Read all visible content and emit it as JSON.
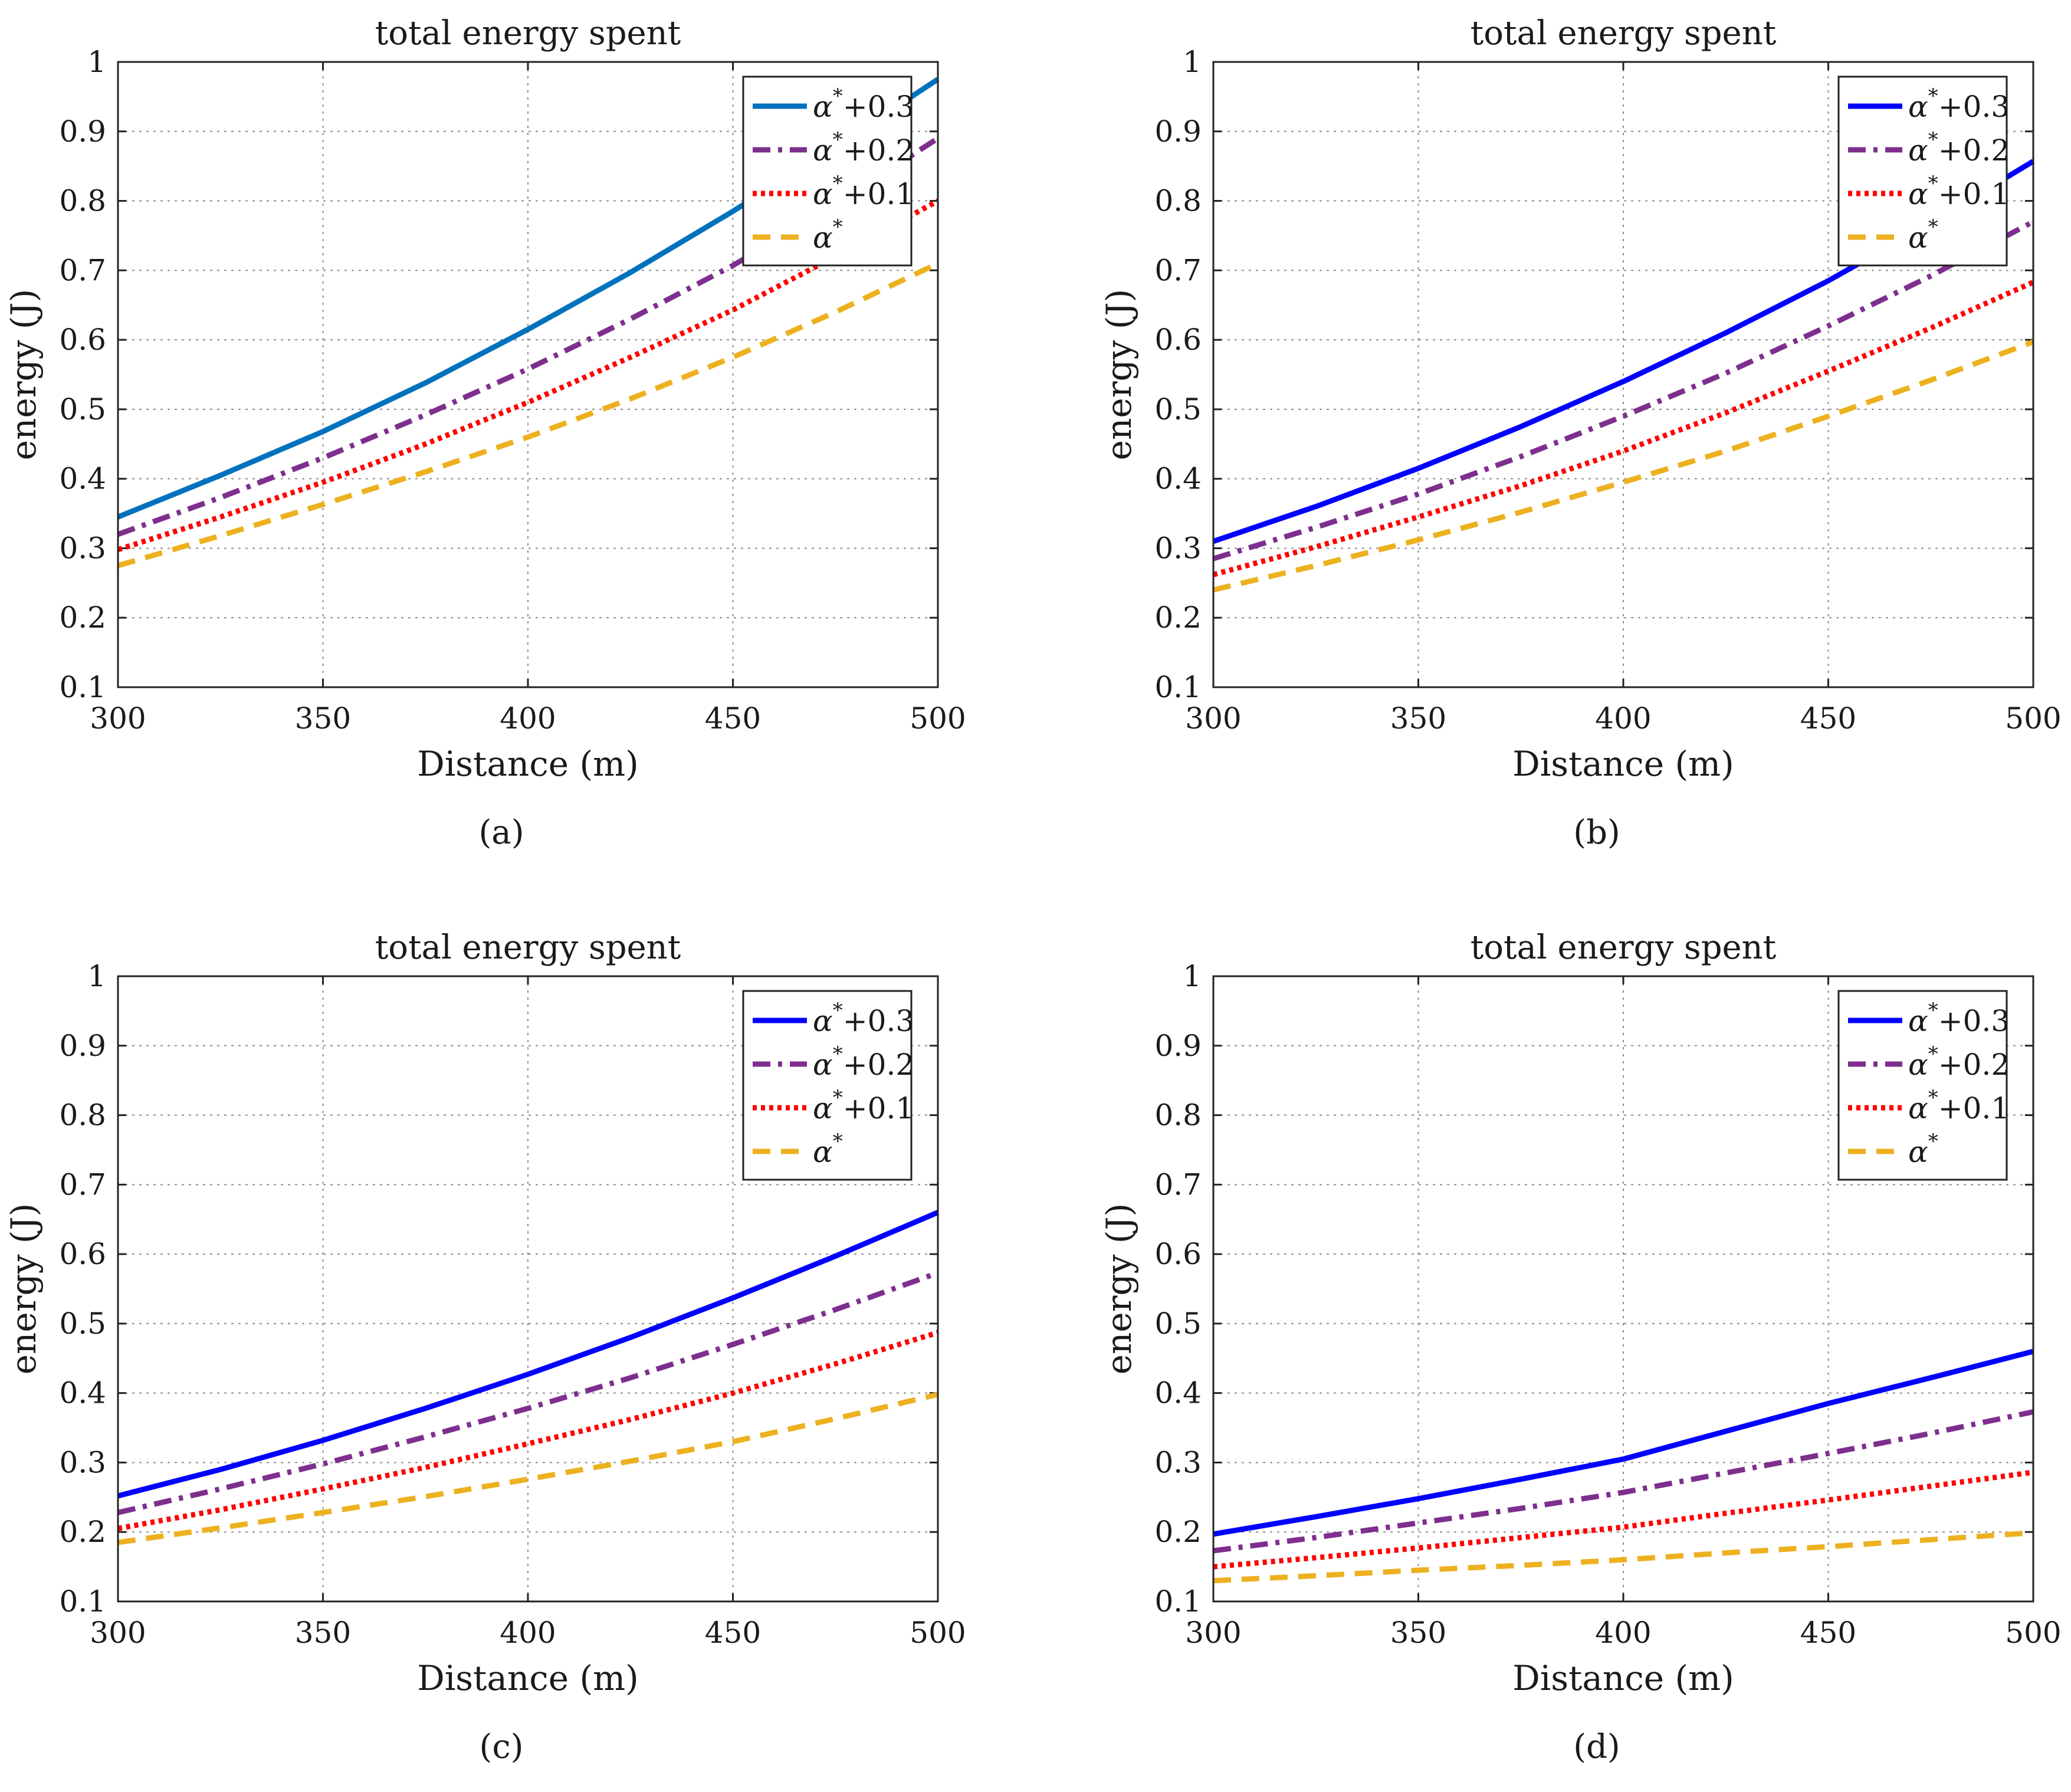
{
  "chart_data": [
    {
      "panel_label": "(a)",
      "type": "line",
      "title": "total energy spent",
      "xlabel": "Distance (m)",
      "ylabel": "energy (J)",
      "xlim": [
        300,
        500
      ],
      "ylim": [
        0.1,
        1
      ],
      "xticks": [
        "300",
        "350",
        "400",
        "450",
        "500"
      ],
      "yticks": [
        "0.1",
        "0.2",
        "0.3",
        "0.4",
        "0.5",
        "0.6",
        "0.7",
        "0.8",
        "0.9",
        "1"
      ],
      "grid": true,
      "legend_position": "top-right",
      "x": [
        300,
        325,
        350,
        375,
        400,
        425,
        450,
        475,
        500
      ],
      "series": [
        {
          "name": "α*+0.3",
          "greek": "α",
          "sup": "*",
          "suffix": "+0.3",
          "color": "#0072BD",
          "dash": "solid",
          "values": [
            0.345,
            0.405,
            0.468,
            0.538,
            0.615,
            0.697,
            0.785,
            0.878,
            0.975
          ]
        },
        {
          "name": "α*+0.2",
          "greek": "α",
          "sup": "*",
          "suffix": "+0.2",
          "color": "#7E2F8E",
          "dash": "dashdot",
          "values": [
            0.32,
            0.373,
            0.43,
            0.492,
            0.558,
            0.63,
            0.707,
            0.795,
            0.89
          ]
        },
        {
          "name": "α*+0.1",
          "greek": "α",
          "sup": "*",
          "suffix": "+0.1",
          "color": "#FF0000",
          "dash": "dotted",
          "values": [
            0.298,
            0.345,
            0.395,
            0.45,
            0.51,
            0.575,
            0.643,
            0.72,
            0.8
          ]
        },
        {
          "name": "α*",
          "greek": "α",
          "sup": "*",
          "suffix": "",
          "color": "#EDB120",
          "dash": "dashed",
          "values": [
            0.275,
            0.318,
            0.363,
            0.41,
            0.46,
            0.515,
            0.575,
            0.64,
            0.71
          ]
        }
      ]
    },
    {
      "panel_label": "(b)",
      "type": "line",
      "title": "total energy spent",
      "xlabel": "Distance (m)",
      "ylabel": "energy (J)",
      "xlim": [
        300,
        500
      ],
      "ylim": [
        0.1,
        1
      ],
      "xticks": [
        "300",
        "350",
        "400",
        "450",
        "500"
      ],
      "yticks": [
        "0.1",
        "0.2",
        "0.3",
        "0.4",
        "0.5",
        "0.6",
        "0.7",
        "0.8",
        "0.9",
        "1"
      ],
      "grid": true,
      "legend_position": "top-right",
      "x": [
        300,
        325,
        350,
        375,
        400,
        425,
        450,
        475,
        500
      ],
      "series": [
        {
          "name": "α*+0.3",
          "greek": "α",
          "sup": "*",
          "suffix": "+0.3",
          "color": "#0000FF",
          "dash": "solid",
          "values": [
            0.31,
            0.36,
            0.415,
            0.475,
            0.54,
            0.61,
            0.685,
            0.768,
            0.857
          ]
        },
        {
          "name": "α*+0.2",
          "greek": "α",
          "sup": "*",
          "suffix": "+0.2",
          "color": "#7E2F8E",
          "dash": "dashdot",
          "values": [
            0.285,
            0.33,
            0.378,
            0.432,
            0.49,
            0.552,
            0.62,
            0.692,
            0.77
          ]
        },
        {
          "name": "α*+0.1",
          "greek": "α",
          "sup": "*",
          "suffix": "+0.1",
          "color": "#FF0000",
          "dash": "dotted",
          "values": [
            0.262,
            0.302,
            0.345,
            0.39,
            0.44,
            0.495,
            0.555,
            0.617,
            0.683
          ]
        },
        {
          "name": "α*",
          "greek": "α",
          "sup": "*",
          "suffix": "",
          "color": "#EDB120",
          "dash": "dashed",
          "values": [
            0.24,
            0.275,
            0.312,
            0.352,
            0.395,
            0.44,
            0.49,
            0.542,
            0.597
          ]
        }
      ]
    },
    {
      "panel_label": "(c)",
      "type": "line",
      "title": "total energy spent",
      "xlabel": "Distance (m)",
      "ylabel": "energy (J)",
      "xlim": [
        300,
        500
      ],
      "ylim": [
        0.1,
        1
      ],
      "xticks": [
        "300",
        "350",
        "400",
        "450",
        "500"
      ],
      "yticks": [
        "0.1",
        "0.2",
        "0.3",
        "0.4",
        "0.5",
        "0.6",
        "0.7",
        "0.8",
        "0.9",
        "1"
      ],
      "grid": true,
      "legend_position": "top-right",
      "x": [
        300,
        325,
        350,
        375,
        400,
        425,
        450,
        475,
        500
      ],
      "series": [
        {
          "name": "α*+0.3",
          "greek": "α",
          "sup": "*",
          "suffix": "+0.3",
          "color": "#0000FF",
          "dash": "solid",
          "values": [
            0.252,
            0.29,
            0.332,
            0.378,
            0.427,
            0.48,
            0.537,
            0.597,
            0.66
          ]
        },
        {
          "name": "α*+0.2",
          "greek": "α",
          "sup": "*",
          "suffix": "+0.2",
          "color": "#7E2F8E",
          "dash": "dashdot",
          "values": [
            0.228,
            0.262,
            0.298,
            0.337,
            0.378,
            0.422,
            0.47,
            0.52,
            0.573
          ]
        },
        {
          "name": "α*+0.1",
          "greek": "α",
          "sup": "*",
          "suffix": "+0.1",
          "color": "#FF0000",
          "dash": "dotted",
          "values": [
            0.205,
            0.232,
            0.262,
            0.293,
            0.327,
            0.362,
            0.4,
            0.442,
            0.487
          ]
        },
        {
          "name": "α*",
          "greek": "α",
          "sup": "*",
          "suffix": "",
          "color": "#EDB120",
          "dash": "dashed",
          "values": [
            0.185,
            0.206,
            0.228,
            0.251,
            0.276,
            0.302,
            0.33,
            0.363,
            0.398
          ]
        }
      ]
    },
    {
      "panel_label": "(d)",
      "type": "line",
      "title": "total energy spent",
      "xlabel": "Distance (m)",
      "ylabel": "energy (J)",
      "xlim": [
        300,
        500
      ],
      "ylim": [
        0.1,
        1
      ],
      "xticks": [
        "300",
        "350",
        "400",
        "450",
        "500"
      ],
      "yticks": [
        "0.1",
        "0.2",
        "0.3",
        "0.4",
        "0.5",
        "0.6",
        "0.7",
        "0.8",
        "0.9",
        "1"
      ],
      "grid": true,
      "legend_position": "top-right",
      "x": [
        300,
        325,
        350,
        375,
        400,
        425,
        450,
        475,
        500
      ],
      "series": [
        {
          "name": "α*+0.3",
          "greek": "α",
          "sup": "*",
          "suffix": "+0.3",
          "color": "#0000FF",
          "dash": "solid",
          "values": [
            0.197,
            0.222,
            0.248,
            0.276,
            0.305,
            0.345,
            0.385,
            0.422,
            0.46
          ]
        },
        {
          "name": "α*+0.2",
          "greek": "α",
          "sup": "*",
          "suffix": "+0.2",
          "color": "#7E2F8E",
          "dash": "dashdot",
          "values": [
            0.173,
            0.192,
            0.213,
            0.234,
            0.257,
            0.285,
            0.313,
            0.342,
            0.373
          ]
        },
        {
          "name": "α*+0.1",
          "greek": "α",
          "sup": "*",
          "suffix": "+0.1",
          "color": "#FF0000",
          "dash": "dotted",
          "values": [
            0.15,
            0.163,
            0.177,
            0.192,
            0.207,
            0.227,
            0.246,
            0.266,
            0.286
          ]
        },
        {
          "name": "α*",
          "greek": "α",
          "sup": "*",
          "suffix": "",
          "color": "#EDB120",
          "dash": "dashed",
          "values": [
            0.13,
            0.137,
            0.145,
            0.152,
            0.16,
            0.17,
            0.179,
            0.189,
            0.199
          ]
        }
      ]
    }
  ]
}
